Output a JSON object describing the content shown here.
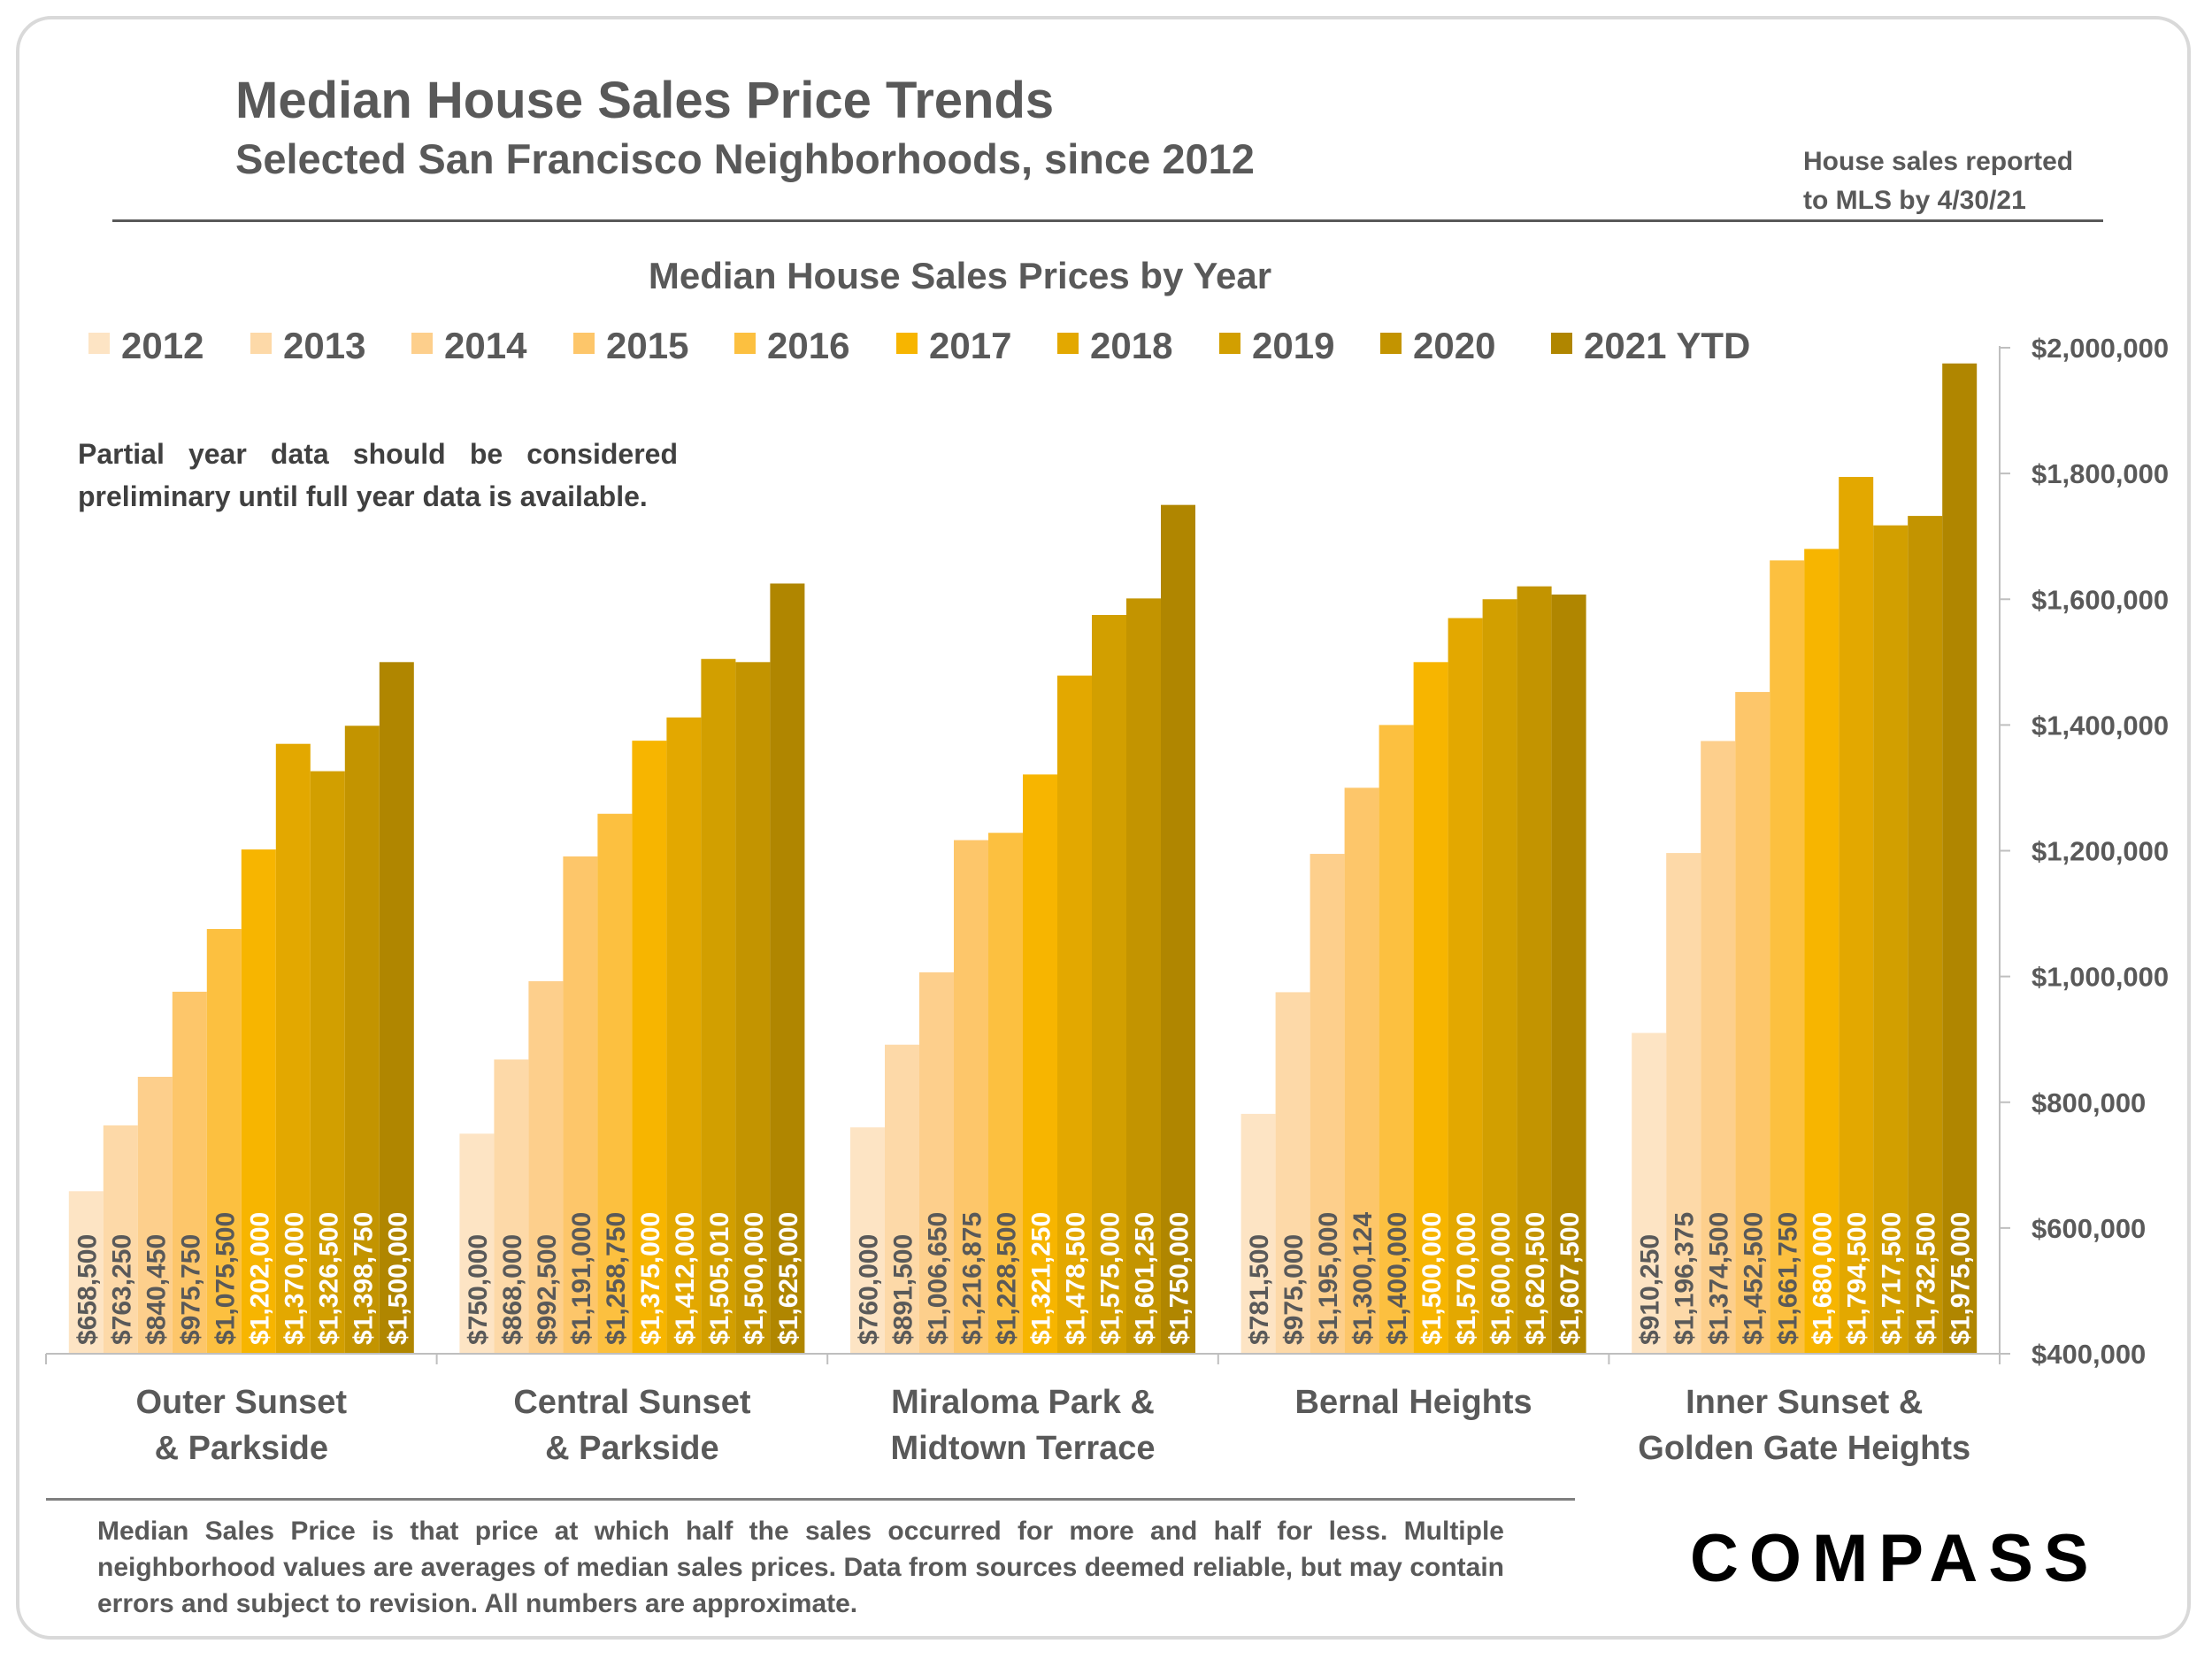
{
  "header": {
    "title": "Median House Sales Price Trends",
    "subtitle": "Selected San Francisco Neighborhoods, since 2012",
    "note_line1": "House sales reported",
    "note_line2": "to MLS by 4/30/21"
  },
  "caveat": "Partial year data should be considered preliminary until full year data is available.",
  "footnote": "Median Sales Price is that price at which half the sales occurred for more and half for less. Multiple neighborhood values are averages of median sales prices. Data from sources deemed reliable, but may contain errors and subject to revision.  All numbers are approximate.",
  "logo": "COMPASS",
  "colors": {
    "series": [
      "#fde4c4",
      "#fdd9a8",
      "#fdcf8c",
      "#fdc66a",
      "#fcc040",
      "#f7b500",
      "#e3a800",
      "#d29f00",
      "#c39400",
      "#b08600"
    ],
    "text": "#595959",
    "axis": "#bfbfbf"
  },
  "chart_data": {
    "type": "bar",
    "title": "Median House Sales Prices by Year",
    "categories": [
      [
        "Outer Sunset",
        "& Parkside"
      ],
      [
        "Central Sunset",
        "& Parkside"
      ],
      [
        "Miraloma Park &",
        "Midtown Terrace"
      ],
      [
        "Bernal Heights"
      ],
      [
        "Inner Sunset &",
        "Golden Gate Heights"
      ]
    ],
    "series": [
      {
        "name": "2012",
        "values": [
          658500,
          750000,
          760000,
          781500,
          910250
        ],
        "labels": [
          "$658,500",
          "$750,000",
          "$760,000",
          "$781,500",
          "$910,250"
        ]
      },
      {
        "name": "2013",
        "values": [
          763250,
          868000,
          891500,
          975000,
          1196375
        ],
        "labels": [
          "$763,250",
          "$868,000",
          "$891,500",
          "$975,000",
          "$1,196,375"
        ]
      },
      {
        "name": "2014",
        "values": [
          840450,
          992500,
          1006650,
          1195000,
          1374500
        ],
        "labels": [
          "$840,450",
          "$992,500",
          "$1,006,650",
          "$1,195,000",
          "$1,374,500"
        ]
      },
      {
        "name": "2015",
        "values": [
          975750,
          1191000,
          1216875,
          1300124,
          1452500
        ],
        "labels": [
          "$975,750",
          "$1,191,000",
          "$1,216,875",
          "$1,300,124",
          "$1,452,500"
        ]
      },
      {
        "name": "2016",
        "values": [
          1075500,
          1258750,
          1228500,
          1400000,
          1661750
        ],
        "labels": [
          "$1,075,500",
          "$1,258,750",
          "$1,228,500",
          "$1,400,000",
          "$1,661,750"
        ]
      },
      {
        "name": "2017",
        "values": [
          1202000,
          1375000,
          1321250,
          1500000,
          1680000
        ],
        "labels": [
          "$1,202,000",
          "$1,375,000",
          "$1,321,250",
          "$1,500,000",
          "$1,680,000"
        ]
      },
      {
        "name": "2018",
        "values": [
          1370000,
          1412000,
          1478500,
          1570000,
          1794500
        ],
        "labels": [
          "$1,370,000",
          "$1,412,000",
          "$1,478,500",
          "$1,570,000",
          "$1,794,500"
        ]
      },
      {
        "name": "2019",
        "values": [
          1326500,
          1505010,
          1575000,
          1600000,
          1717500
        ],
        "labels": [
          "$1,326,500",
          "$1,505,010",
          "$1,575,000",
          "$1,600,000",
          "$1,717,500"
        ]
      },
      {
        "name": "2020",
        "values": [
          1398750,
          1500000,
          1601250,
          1620500,
          1732500
        ],
        "labels": [
          "$1,398,750",
          "$1,500,000",
          "$1,601,250",
          "$1,620,500",
          "$1,732,500"
        ]
      },
      {
        "name": "2021 YTD",
        "values": [
          1500000,
          1625000,
          1750000,
          1607500,
          1975000
        ],
        "labels": [
          "$1,500,000",
          "$1,625,000",
          "$1,750,000",
          "$1,607,500",
          "$1,975,000"
        ]
      }
    ],
    "ylim": [
      400000,
      2000000
    ],
    "yticks": [
      400000,
      600000,
      800000,
      1000000,
      1200000,
      1400000,
      1600000,
      1800000,
      2000000
    ],
    "ytick_labels": [
      "$400,000",
      "$600,000",
      "$800,000",
      "$1,000,000",
      "$1,200,000",
      "$1,400,000",
      "$1,600,000",
      "$1,800,000",
      "$2,000,000"
    ],
    "yaxis_position": "right",
    "legend_position": "top",
    "grid": false
  }
}
